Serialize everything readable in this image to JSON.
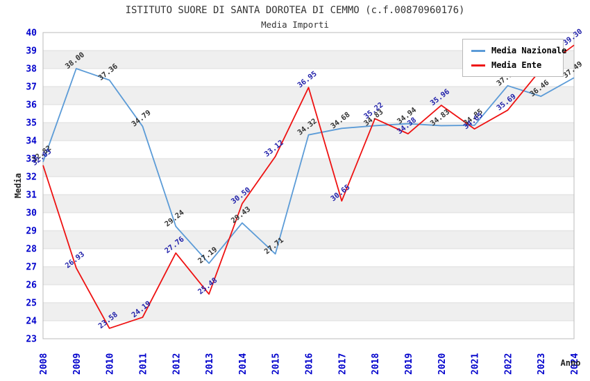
{
  "chart_data": {
    "type": "line",
    "title": "ISTITUTO SUORE DI SANTA DOROTEA DI CEMMO (c.f.00870960176)",
    "subtitle": "Media Importi",
    "xlabel": "Anno",
    "ylabel": "Media",
    "ylim": [
      23,
      40
    ],
    "ytick_step": 1,
    "grid": "horizontal-bands",
    "legend_position": "top-right",
    "categories": [
      "2008",
      "2009",
      "2010",
      "2011",
      "2012",
      "2013",
      "2014",
      "2015",
      "2016",
      "2017",
      "2018",
      "2019",
      "2020",
      "2021",
      "2022",
      "2023",
      "2024"
    ],
    "series": [
      {
        "name": "Media Nazionale",
        "color": "#5b9bd7",
        "label_color": "#333333",
        "values": [
          32.82,
          38.0,
          37.36,
          34.79,
          29.24,
          27.19,
          29.43,
          27.71,
          34.32,
          34.68,
          34.83,
          34.94,
          34.83,
          34.85,
          37.05,
          36.46,
          37.49
        ],
        "labels": [
          "32.82",
          "38.00",
          "37.36",
          "34.79",
          "29.24",
          "27.19",
          "29.43",
          "27.71",
          "34.32",
          "34.68",
          "34.83",
          "34.94",
          "34.83",
          "34.85",
          "37.05",
          "36.46",
          "37.49"
        ]
      },
      {
        "name": "Media Ente",
        "color": "#ee1111",
        "label_color": "#2222aa",
        "values": [
          32.63,
          26.93,
          23.58,
          24.19,
          27.76,
          25.48,
          30.5,
          33.12,
          36.95,
          30.65,
          35.22,
          34.38,
          35.96,
          34.65,
          35.69,
          37.95,
          39.3
        ],
        "labels": [
          "32.63",
          "26.93",
          "23.58",
          "24.19",
          "27.76",
          "25.48",
          "30.50",
          "33.12",
          "36.95",
          "30.65",
          "35.22",
          "34.38",
          "35.96",
          "34.65",
          "35.69",
          null,
          "39.30"
        ]
      }
    ],
    "axis_tick_color": "#0000cc",
    "band_colors": [
      "#ffffff",
      "#efefef"
    ],
    "gridline_color": "#dddddd",
    "border_color": "#bbbbbb"
  }
}
